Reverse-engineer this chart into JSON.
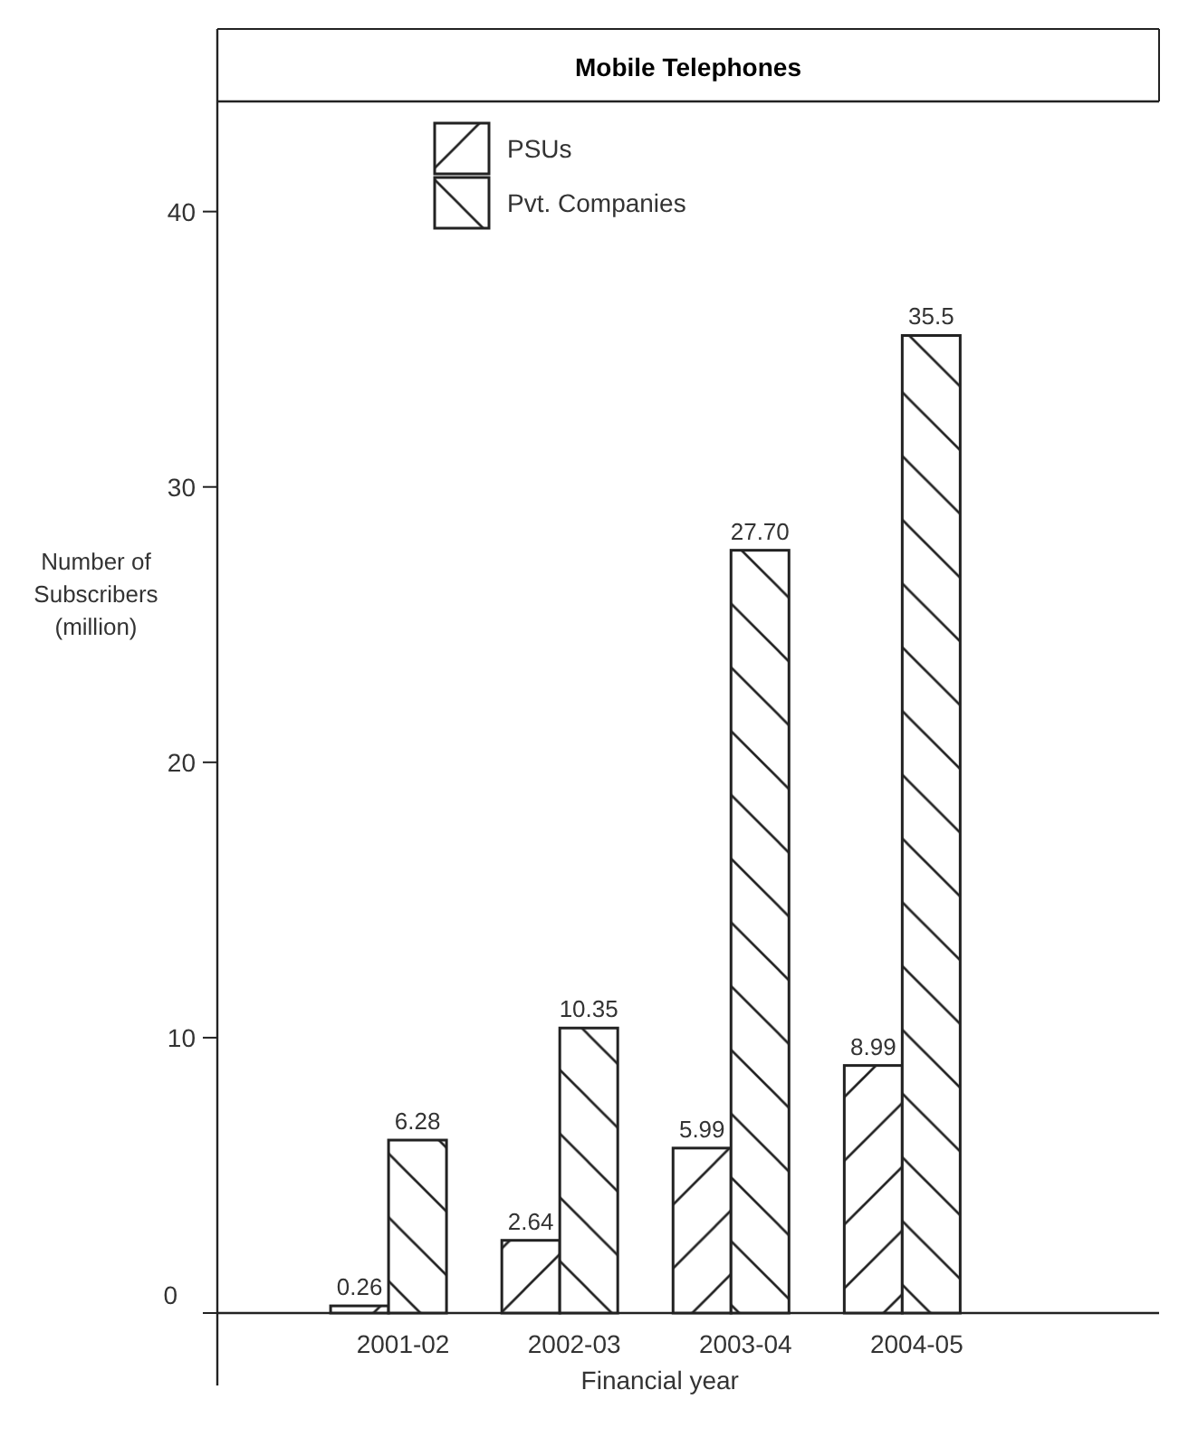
{
  "chart_data": {
    "type": "bar",
    "title": "Mobile Telephones",
    "xlabel": "Financial year",
    "ylabel": "Number of\nSubscribers\n(million)",
    "categories": [
      "2001-02",
      "2002-03",
      "2003-04",
      "2004-05"
    ],
    "series": [
      {
        "name": "PSUs",
        "color": "#222222",
        "values": [
          0.26,
          2.64,
          5.99,
          8.99
        ],
        "value_labels": [
          "0.26",
          "2.64",
          "5.99",
          "8.99"
        ]
      },
      {
        "name": "Pvt. Companies",
        "color": "#222222",
        "values": [
          6.28,
          10.35,
          27.7,
          35.5
        ],
        "value_labels": [
          "6.28",
          "10.35",
          "27.70",
          "35.5"
        ]
      }
    ],
    "ylim": [
      0,
      44
    ],
    "yticks": [
      0,
      10,
      20,
      30,
      40
    ],
    "legend": "top left"
  }
}
